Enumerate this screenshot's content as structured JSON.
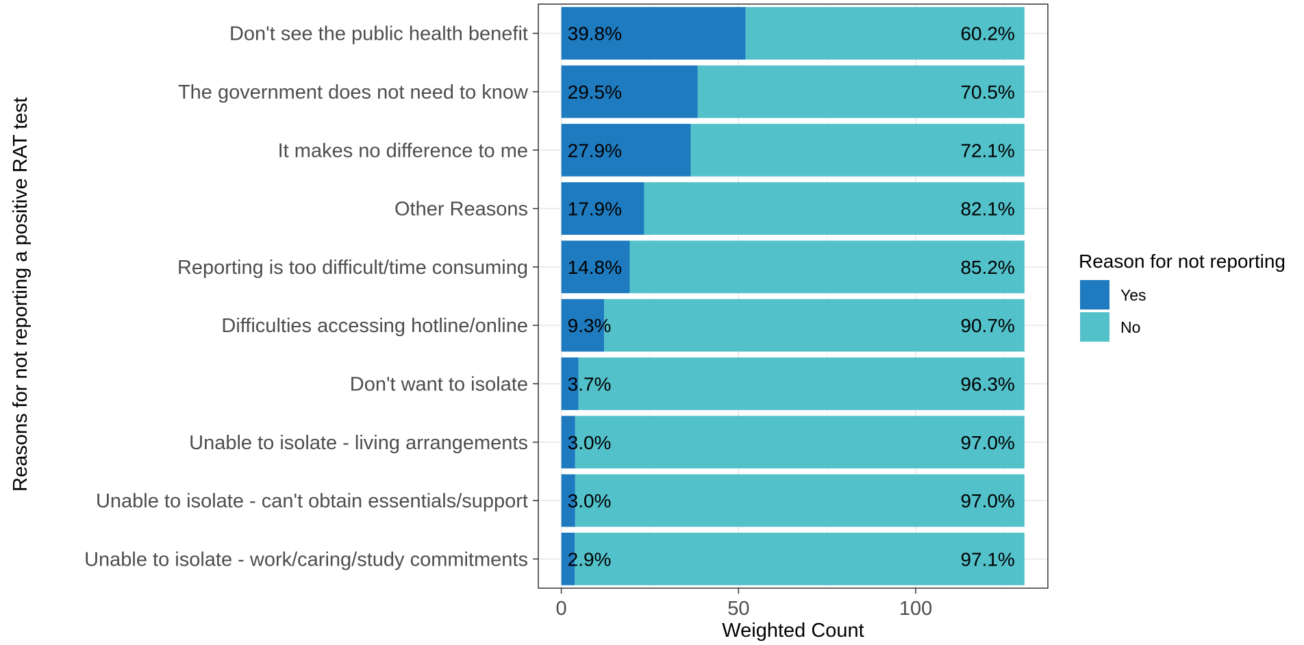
{
  "chart_data": {
    "type": "bar",
    "orientation": "horizontal",
    "stacked": true,
    "categories": [
      "Don't see the public health benefit",
      "The government does not need to know",
      "It makes no difference to me",
      "Other Reasons",
      "Reporting is too difficult/time consuming",
      "Difficulties accessing hotline/online",
      "Don't want to isolate",
      "Unable to isolate - living arrangements",
      "Unable to isolate - can't obtain essentials/support",
      "Unable to isolate - work/caring/study commitments"
    ],
    "series": [
      {
        "name": "Yes",
        "color": "#1F7BBF",
        "values": [
          52.0,
          38.5,
          36.5,
          23.4,
          19.3,
          12.1,
          4.8,
          3.9,
          3.9,
          3.8
        ],
        "labels": [
          "39.8%",
          "29.5%",
          "27.9%",
          "17.9%",
          "14.8%",
          "9.3%",
          "3.7%",
          "3.0%",
          "3.0%",
          "2.9%"
        ]
      },
      {
        "name": "No",
        "color": "#53C1CA",
        "values": [
          78.7,
          92.2,
          94.2,
          107.3,
          111.4,
          118.6,
          125.9,
          126.8,
          126.8,
          126.9
        ],
        "labels": [
          "60.2%",
          "70.5%",
          "72.1%",
          "82.1%",
          "85.2%",
          "90.7%",
          "96.3%",
          "97.0%",
          "97.0%",
          "97.1%"
        ]
      }
    ],
    "total": 130.7,
    "xlabel": "Weighted Count",
    "ylabel": "Reasons for not reporting a positive RAT test",
    "xlim": [
      -6.5,
      137.3
    ],
    "xticks": [
      0,
      50,
      100
    ],
    "grid": true,
    "legend": {
      "title": "Reason for not reporting",
      "position": "right"
    }
  }
}
